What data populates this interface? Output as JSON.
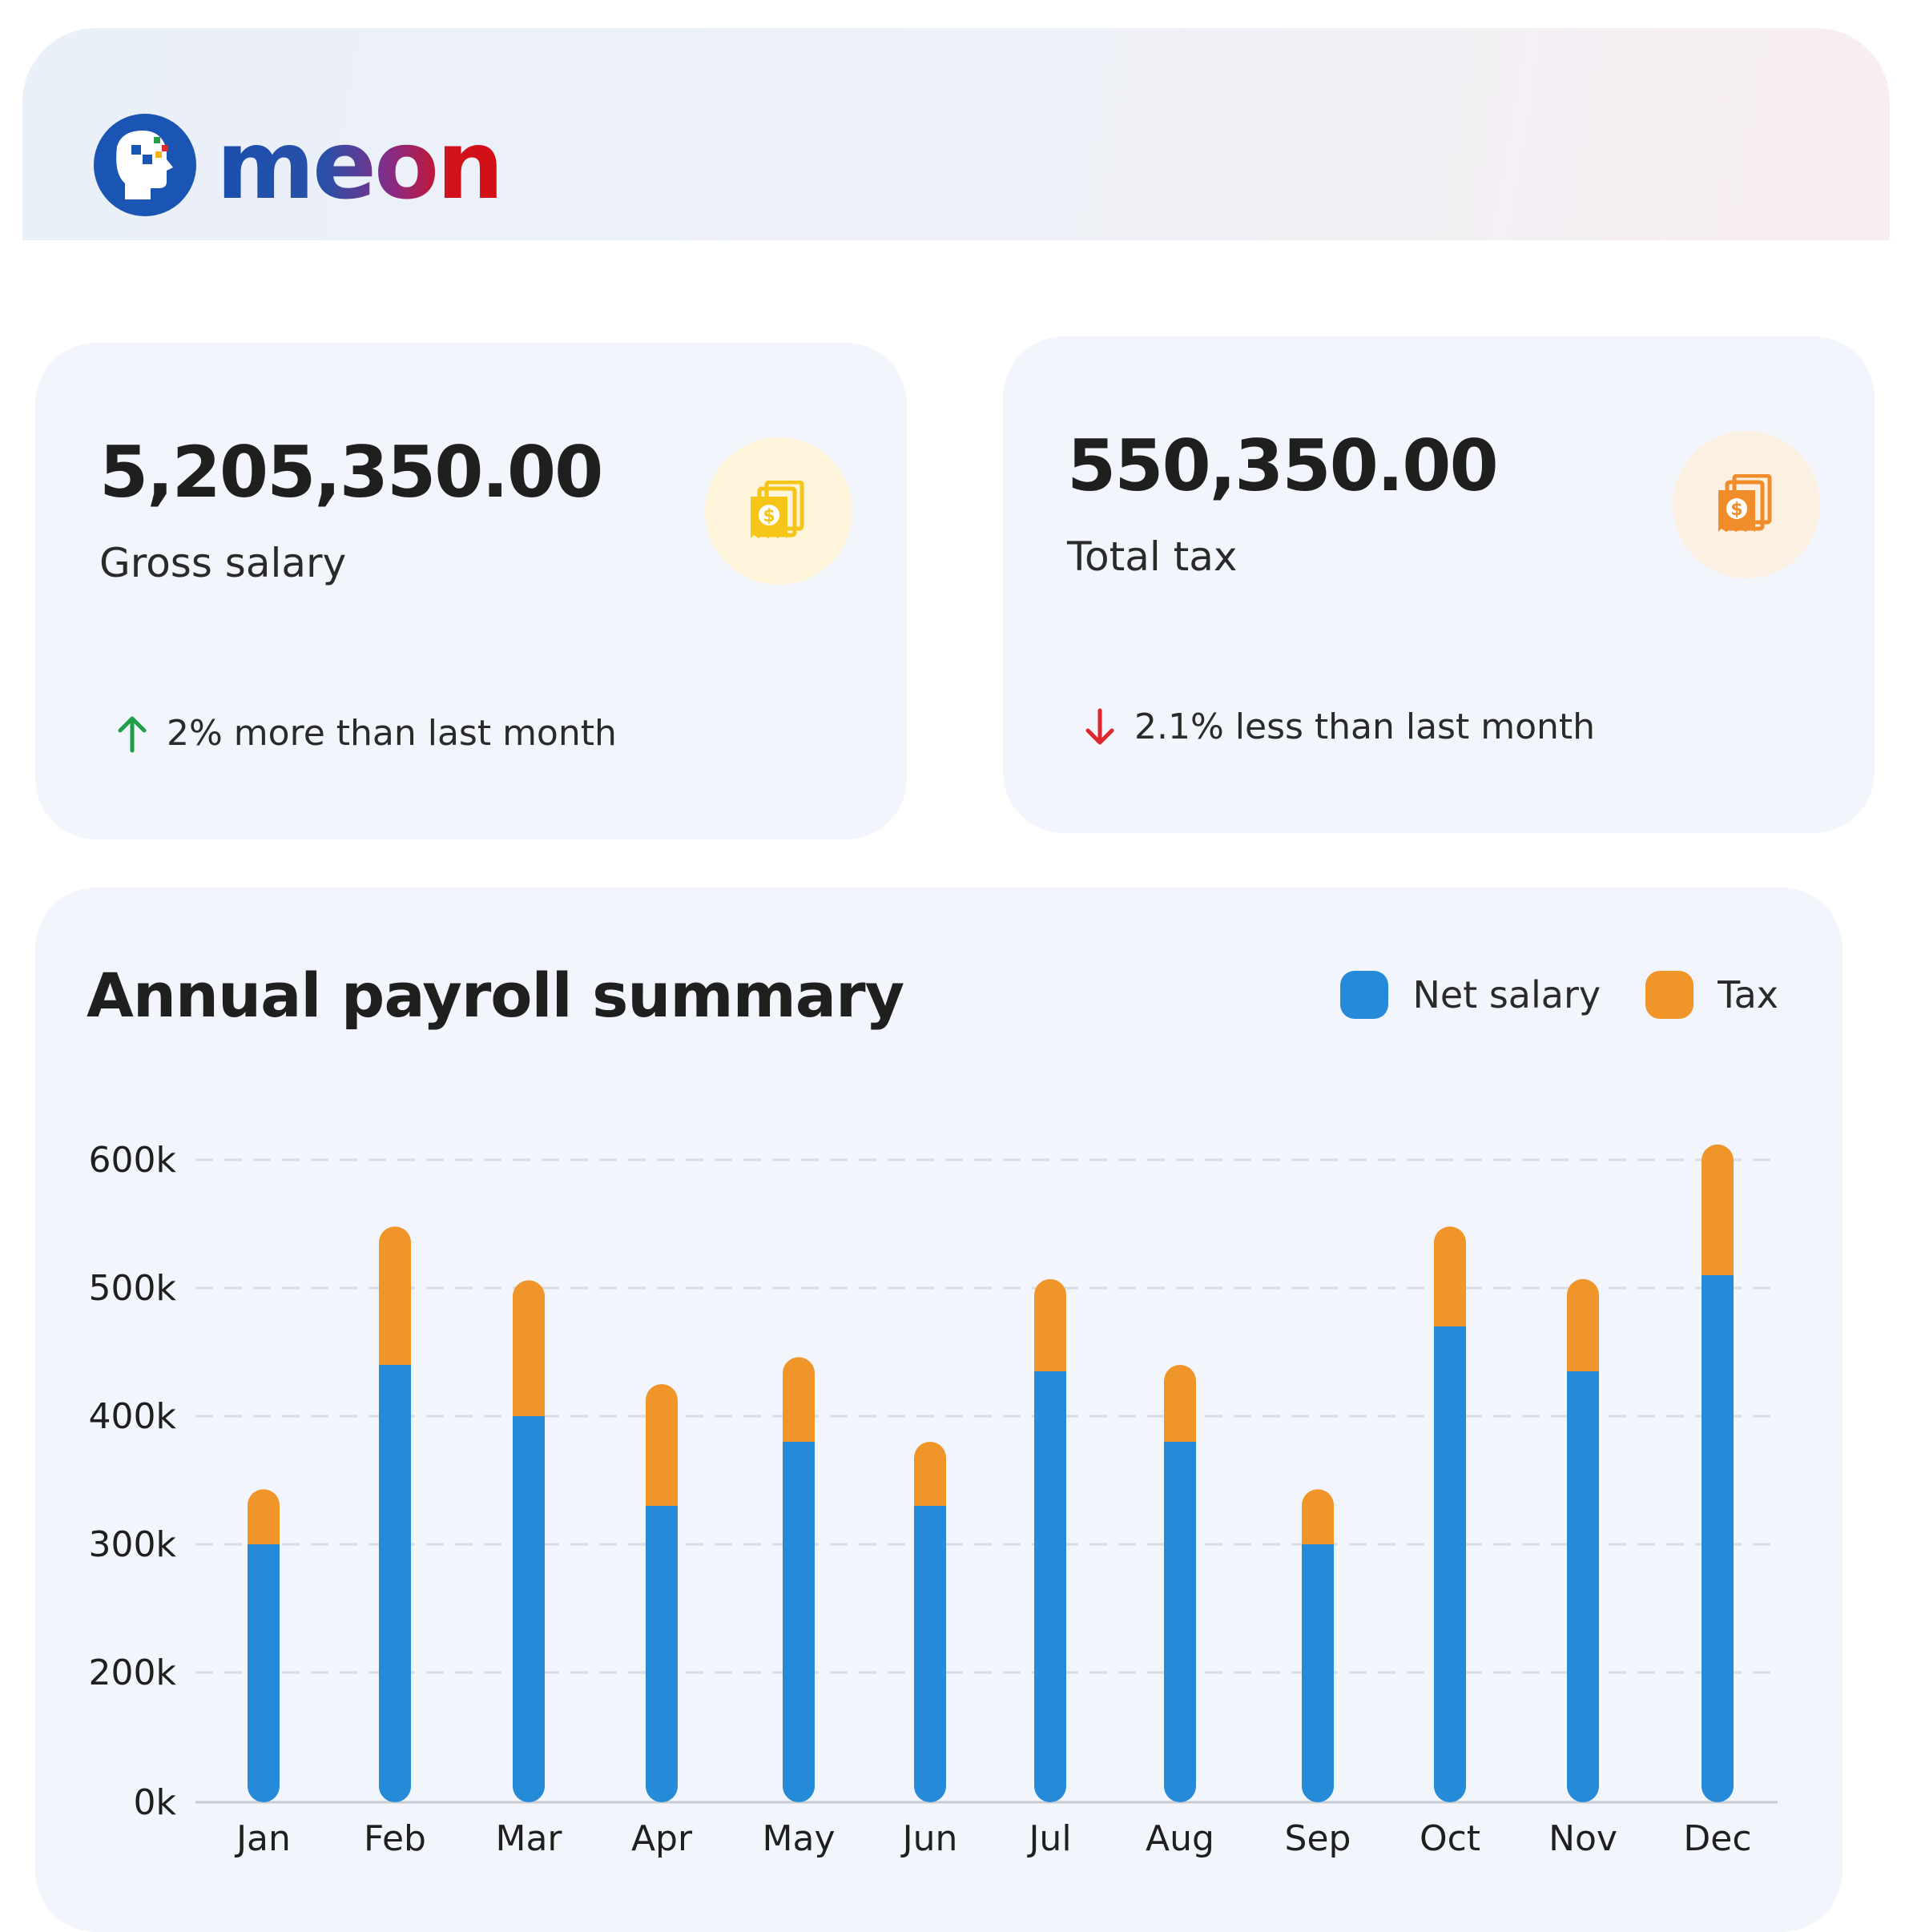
{
  "brand": {
    "name": "meon"
  },
  "cards": {
    "gross": {
      "value": "5,205,350.00",
      "label": "Gross salary",
      "trend_text": "2% more than last month",
      "trend_direction": "up",
      "trend_color": "#1e9e45",
      "icon": "money-receipt-icon",
      "icon_color": "#f5c518"
    },
    "tax": {
      "value": "550,350.00",
      "label": "Total tax",
      "trend_text": "2.1% less than last month",
      "trend_direction": "down",
      "trend_color": "#e0262f",
      "icon": "money-receipt-icon",
      "icon_color": "#f08c2a"
    }
  },
  "chart": {
    "title": "Annual payroll summary",
    "legend": [
      {
        "name": "Net salary",
        "color": "#258bd9"
      },
      {
        "name": "Tax",
        "color": "#f0952a"
      }
    ]
  },
  "chart_data": {
    "type": "bar",
    "stacked": true,
    "title": "Annual payroll summary",
    "categories": [
      "Jan",
      "Feb",
      "Mar",
      "Apr",
      "May",
      "Jun",
      "Jul",
      "Aug",
      "Sep",
      "Oct",
      "Nov",
      "Dec"
    ],
    "series": [
      {
        "name": "Net salary",
        "color": "#258bd9",
        "values": [
          300000,
          440000,
          400000,
          330000,
          380000,
          330000,
          435000,
          380000,
          300000,
          470000,
          435000,
          510000
        ]
      },
      {
        "name": "Tax",
        "color": "#f0952a",
        "values": [
          43000,
          108000,
          106000,
          95000,
          66000,
          50000,
          72000,
          60000,
          43000,
          78000,
          72000,
          102000
        ]
      }
    ],
    "y_ticks": [
      "0k",
      "200k",
      "300k",
      "400k",
      "500k",
      "600k"
    ],
    "ylim": [
      0,
      600000
    ],
    "grid": true,
    "legend_position": "top-right"
  }
}
